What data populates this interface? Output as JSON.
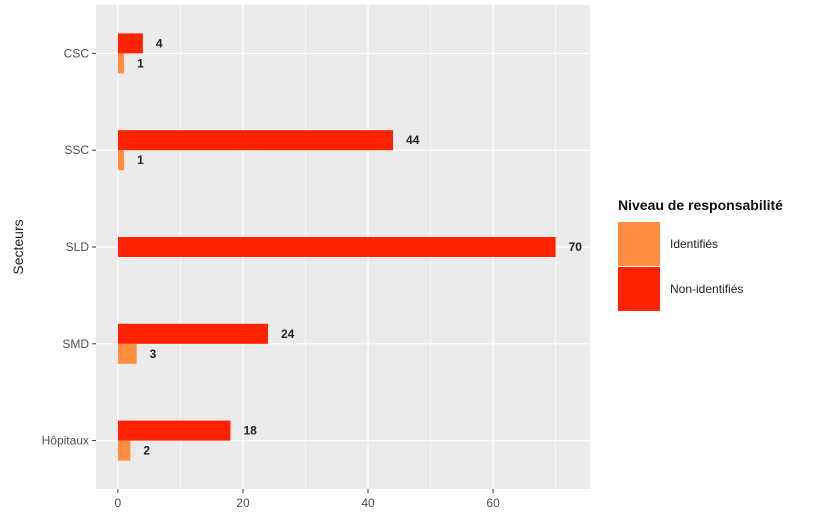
{
  "chart_data": {
    "type": "bar",
    "orientation": "horizontal",
    "categories": [
      "CSC",
      "SSC",
      "SLD",
      "SMD",
      "Hôpitaux"
    ],
    "series": [
      {
        "name": "Non-identifiés",
        "values": [
          4,
          44,
          70,
          24,
          18
        ],
        "color": "#ff2200"
      },
      {
        "name": "Identifiés",
        "values": [
          1,
          1,
          null,
          3,
          2
        ],
        "color": "#ff8c3f"
      }
    ],
    "xlabel": "",
    "ylabel": "Secteurs",
    "xlim": [
      -3.5,
      75.5
    ],
    "xticks": [
      0,
      20,
      40,
      60
    ],
    "grid": true,
    "legend": {
      "title": "Niveau de responsabilité",
      "position": "right",
      "entries": [
        {
          "label": "Identifiés",
          "color": "#ff8c3f"
        },
        {
          "label": "Non-identifiés",
          "color": "#ff2200"
        }
      ]
    },
    "panel_background": "#ebebeb"
  }
}
